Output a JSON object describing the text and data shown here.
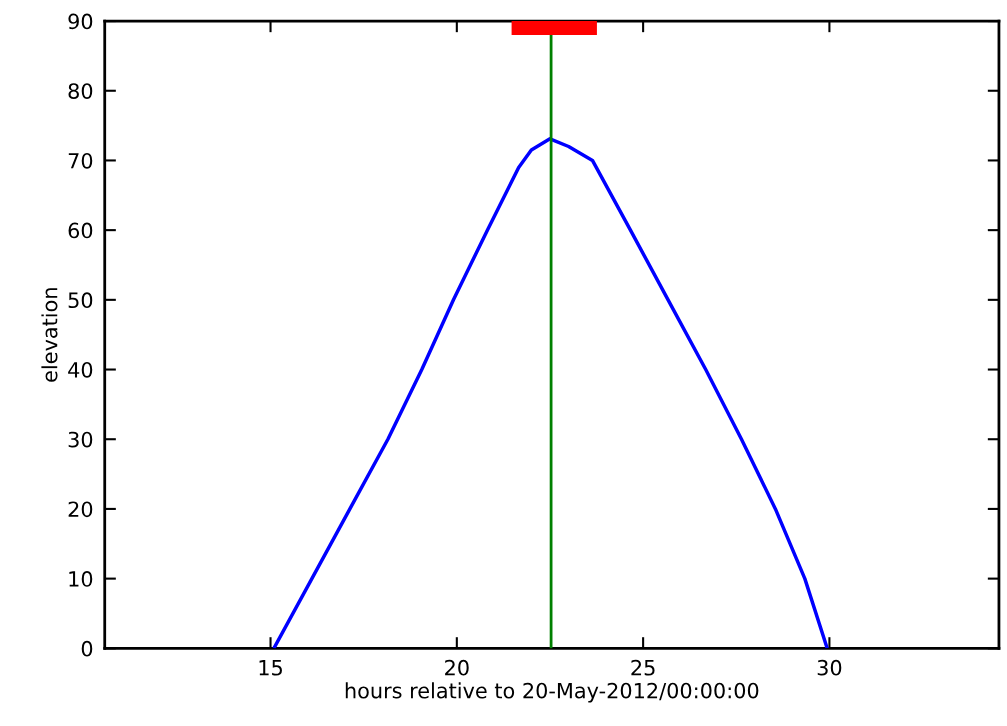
{
  "chart_data": {
    "type": "line",
    "xlabel": "hours relative to 20-May-2012/00:00:00",
    "ylabel": "elevation",
    "xlim": [
      10.55,
      34.55
    ],
    "xticks": [
      15,
      20,
      25,
      30
    ],
    "ylim": [
      0,
      90
    ],
    "yticks": [
      0,
      10,
      20,
      30,
      40,
      50,
      60,
      70,
      80,
      90
    ],
    "grid": false,
    "series": [
      {
        "color": "#0000ff",
        "x": [
          15.09,
          16.11,
          17.13,
          18.15,
          19.06,
          19.91,
          20.82,
          21.66,
          22.0,
          22.5,
          23.0,
          23.64,
          24.66,
          25.67,
          26.68,
          27.64,
          28.55,
          29.34,
          29.94
        ],
        "values": [
          0,
          10,
          20,
          30,
          40,
          50,
          60,
          69,
          71.5,
          73.1,
          72,
          70,
          60,
          50,
          40,
          30,
          20,
          10,
          0
        ]
      },
      {
        "color": "#ff0000",
        "x": [
          21.47,
          23.76
        ],
        "values": [
          89,
          89
        ]
      }
    ],
    "ref_lines": [
      {
        "axis": "x",
        "value": 22.53,
        "color": "#008000"
      }
    ]
  }
}
